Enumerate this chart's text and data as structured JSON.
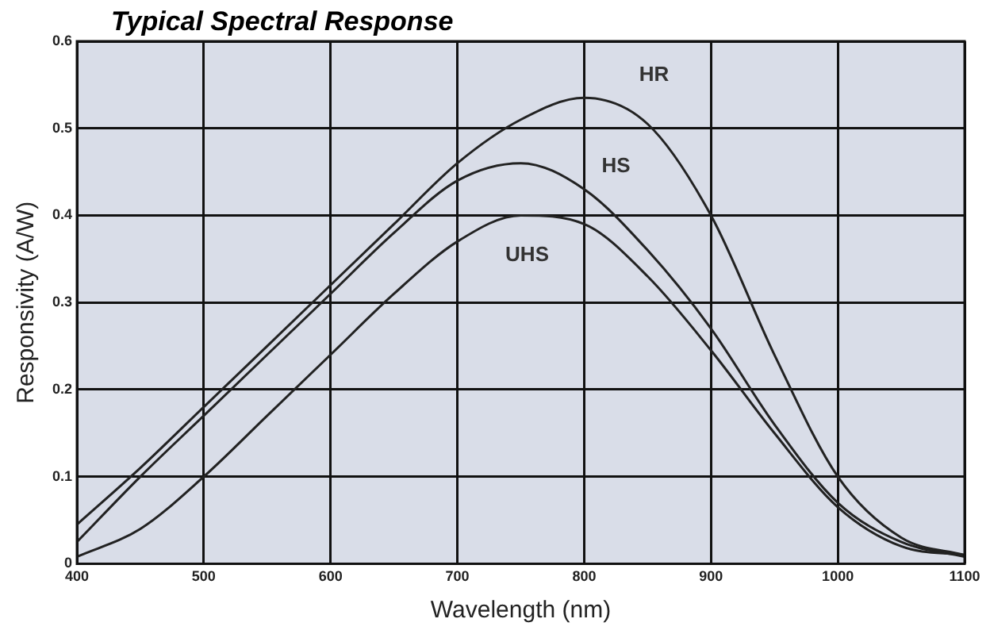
{
  "chart_data": {
    "type": "line",
    "title": "Typical Spectral Response",
    "xlabel": "Wavelength (nm)",
    "ylabel": "Responsivity (A/W)",
    "x": [
      400,
      450,
      500,
      550,
      600,
      650,
      700,
      750,
      800,
      850,
      900,
      950,
      1000,
      1050,
      1100
    ],
    "series": [
      {
        "name": "HR",
        "color": "#222222",
        "values": [
          0.045,
          0.11,
          0.18,
          0.25,
          0.32,
          0.39,
          0.46,
          0.51,
          0.535,
          0.505,
          0.4,
          0.24,
          0.1,
          0.03,
          0.01
        ]
      },
      {
        "name": "HS",
        "color": "#222222",
        "values": [
          0.025,
          0.1,
          0.17,
          0.24,
          0.31,
          0.38,
          0.44,
          0.46,
          0.43,
          0.36,
          0.27,
          0.16,
          0.07,
          0.025,
          0.008
        ]
      },
      {
        "name": "UHS",
        "color": "#222222",
        "values": [
          0.008,
          0.04,
          0.1,
          0.17,
          0.24,
          0.31,
          0.37,
          0.4,
          0.39,
          0.33,
          0.245,
          0.15,
          0.065,
          0.02,
          0.01
        ]
      }
    ],
    "xlim": [
      400,
      1100
    ],
    "xticks": [
      400,
      500,
      600,
      700,
      800,
      900,
      1000,
      1100
    ],
    "ylim": [
      0,
      0.6
    ],
    "yticks": [
      0,
      0.1,
      0.2,
      0.3,
      0.4,
      0.5,
      0.6
    ],
    "grid": true,
    "legend": false,
    "marker": "none",
    "line_style": "solid"
  }
}
